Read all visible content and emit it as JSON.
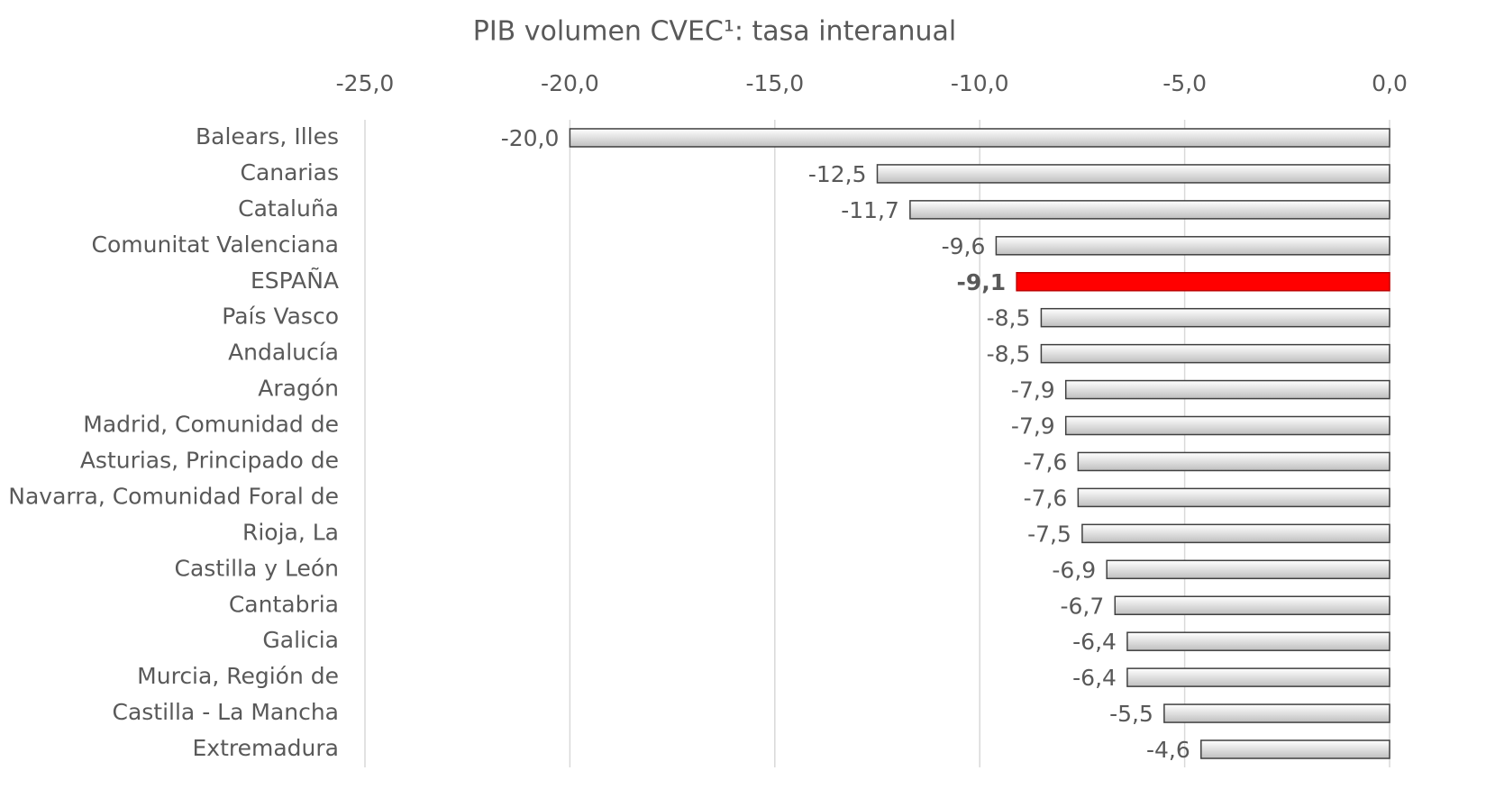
{
  "chart_data": {
    "type": "barh",
    "title": "PIB volumen CVEC¹: tasa interanual",
    "categories": [
      "Balears, Illes",
      "Canarias",
      "Cataluña",
      "Comunitat Valenciana",
      "ESPAÑA",
      "País Vasco",
      "Andalucía",
      "Aragón",
      "Madrid, Comunidad de",
      "Asturias, Principado de",
      "Navarra, Comunidad Foral de",
      "Rioja, La",
      "Castilla y León",
      "Cantabria",
      "Galicia",
      "Murcia, Región de",
      "Castilla - La Mancha",
      "Extremadura"
    ],
    "values": [
      -20.0,
      -12.5,
      -11.7,
      -9.6,
      -9.1,
      -8.5,
      -8.5,
      -7.9,
      -7.9,
      -7.6,
      -7.6,
      -7.5,
      -6.9,
      -6.7,
      -6.4,
      -6.4,
      -5.5,
      -4.6
    ],
    "value_labels": [
      "-20,0",
      "-12,5",
      "-11,7",
      "-9,6",
      "-9,1",
      "-8,5",
      "-8,5",
      "-7,9",
      "-7,9",
      "-7,6",
      "-7,6",
      "-7,5",
      "-6,9",
      "-6,7",
      "-6,4",
      "-6,4",
      "-5,5",
      "-4,6"
    ],
    "color": "#d9d9d9",
    "colors": [
      "#d9d9d9",
      "#d9d9d9",
      "#d9d9d9",
      "#d9d9d9",
      "#ff0000",
      "#d9d9d9",
      "#d9d9d9",
      "#d9d9d9",
      "#d9d9d9",
      "#d9d9d9",
      "#d9d9d9",
      "#d9d9d9",
      "#d9d9d9",
      "#d9d9d9",
      "#d9d9d9",
      "#d9d9d9",
      "#d9d9d9",
      "#d9d9d9"
    ],
    "xlim": [
      -25,
      0
    ],
    "xticks": [
      {
        "value": -25,
        "label": "-25,0"
      },
      {
        "value": -20,
        "label": "-20,0"
      },
      {
        "value": -15,
        "label": "-15,0"
      },
      {
        "value": -10,
        "label": "-10,0"
      },
      {
        "value": -5,
        "label": "-5,0"
      },
      {
        "value": 0,
        "label": "0,0"
      }
    ],
    "grid": true
  }
}
